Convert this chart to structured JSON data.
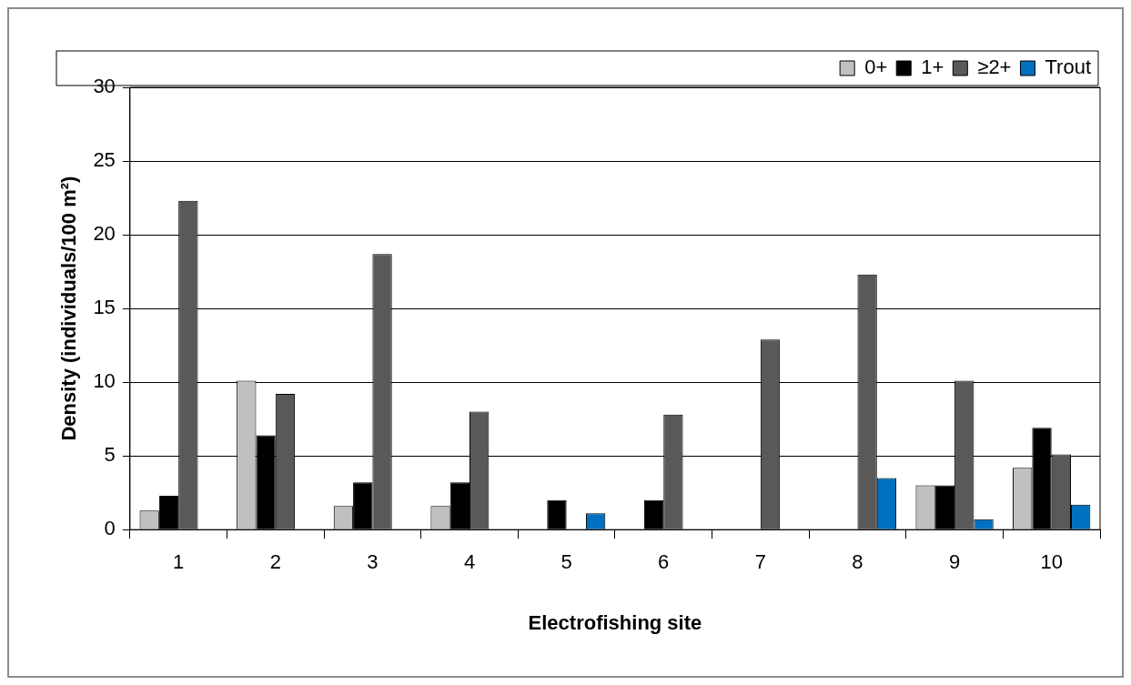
{
  "chart_data": {
    "type": "bar",
    "xlabel": "Electrofishing site",
    "ylabel": "Density (individuals/100 m²)",
    "categories": [
      "1",
      "2",
      "3",
      "4",
      "5",
      "6",
      "7",
      "8",
      "9",
      "10"
    ],
    "series": [
      {
        "name": "0+",
        "color": "#c0c0c0",
        "values": [
          1.3,
          10.1,
          1.6,
          1.6,
          0,
          0,
          0,
          0,
          3.0,
          4.2
        ]
      },
      {
        "name": "1+",
        "color": "#000000",
        "values": [
          2.3,
          6.4,
          3.2,
          3.2,
          2.0,
          2.0,
          0,
          0,
          3.0,
          6.9
        ]
      },
      {
        "name": "≥2+",
        "color": "#595959",
        "values": [
          22.3,
          9.2,
          18.7,
          8.0,
          0,
          7.8,
          12.9,
          17.3,
          10.1,
          5.1
        ]
      },
      {
        "name": "Trout",
        "color": "#0070c0",
        "values": [
          0,
          0,
          0,
          0,
          1.1,
          0,
          0,
          3.5,
          0.7,
          1.7
        ]
      }
    ],
    "ylim": [
      0,
      30
    ],
    "yticks": [
      0,
      5,
      10,
      15,
      20,
      25,
      30
    ],
    "grid": "y",
    "legend": "top right"
  }
}
